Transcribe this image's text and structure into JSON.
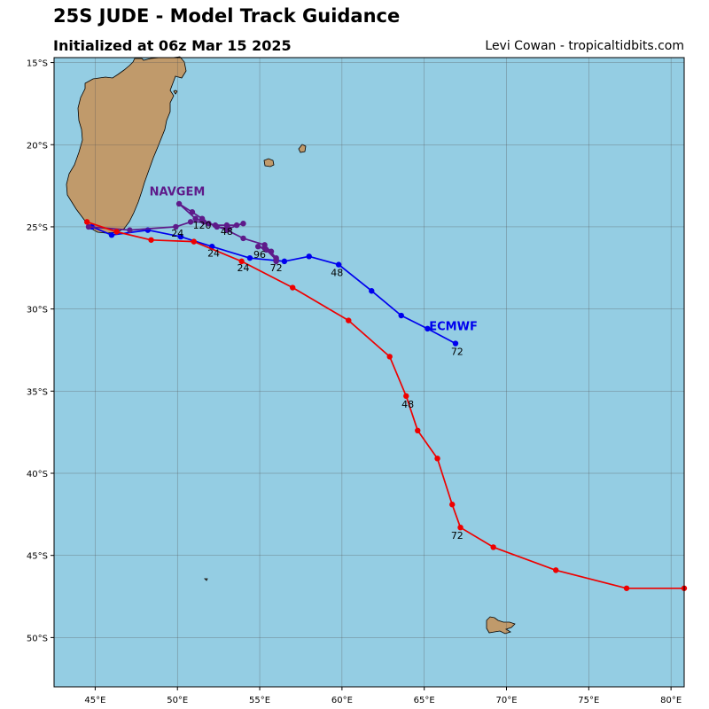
{
  "header": {
    "title": "25S JUDE - Model Track Guidance",
    "subtitle": "Initialized at 06z Mar 15 2025",
    "credit": "Levi Cowan - tropicaltidbits.com"
  },
  "map": {
    "lon_range": [
      42.5,
      80.8
    ],
    "lat_range": [
      -53,
      -14.7
    ],
    "ocean_color": "#94cde3",
    "land_color": "#c09a6b",
    "x_ticks": [
      {
        "value": 45,
        "label": "45°E"
      },
      {
        "value": 50,
        "label": "50°E"
      },
      {
        "value": 55,
        "label": "55°E"
      },
      {
        "value": 60,
        "label": "60°E"
      },
      {
        "value": 65,
        "label": "65°E"
      },
      {
        "value": 70,
        "label": "70°E"
      },
      {
        "value": 75,
        "label": "75°E"
      },
      {
        "value": 80,
        "label": "80°E"
      }
    ],
    "y_ticks": [
      {
        "value": -15,
        "label": "15°S"
      },
      {
        "value": -20,
        "label": "20°S"
      },
      {
        "value": -25,
        "label": "25°S"
      },
      {
        "value": -30,
        "label": "30°S"
      },
      {
        "value": -35,
        "label": "35°S"
      },
      {
        "value": -40,
        "label": "40°S"
      },
      {
        "value": -45,
        "label": "45°S"
      },
      {
        "value": -50,
        "label": "50°S"
      }
    ],
    "grid": true
  },
  "chart_data": {
    "type": "line",
    "x_unit": "degrees longitude E",
    "y_unit": "degrees latitude (negative = S)",
    "series": [
      {
        "name": "ECMWF",
        "color": "#0000ee",
        "points": [
          [
            44.8,
            -25.0
          ],
          [
            46.0,
            -25.5
          ],
          [
            48.2,
            -25.2
          ],
          [
            50.2,
            -25.6
          ],
          [
            52.1,
            -26.2
          ],
          [
            54.4,
            -26.9
          ],
          [
            56.5,
            -27.1
          ],
          [
            58.0,
            -26.8
          ],
          [
            59.8,
            -27.3
          ],
          [
            61.8,
            -28.9
          ],
          [
            63.6,
            -30.4
          ],
          [
            65.2,
            -31.2
          ],
          [
            66.9,
            -32.1
          ]
        ],
        "hour_labels": [
          {
            "text": "24",
            "lon": 52.2,
            "lat": -26.8
          },
          {
            "text": "48",
            "lon": 59.7,
            "lat": -28.0
          },
          {
            "text": "72",
            "lon": 67.0,
            "lat": -32.8
          }
        ]
      },
      {
        "name": "NAVGEM",
        "color": "#5e1a8a",
        "points": [
          [
            44.6,
            -25.0
          ],
          [
            47.1,
            -25.2
          ],
          [
            49.9,
            -25.0
          ],
          [
            50.8,
            -24.7
          ],
          [
            51.6,
            -24.7
          ],
          [
            52.3,
            -24.9
          ],
          [
            53.0,
            -24.9
          ],
          [
            53.6,
            -24.9
          ],
          [
            54.0,
            -24.8
          ],
          [
            53.1,
            -25.1
          ],
          [
            52.4,
            -25.0
          ],
          [
            51.9,
            -24.8
          ],
          [
            51.5,
            -24.5
          ],
          [
            50.9,
            -24.1
          ],
          [
            50.1,
            -23.6
          ],
          [
            51.1,
            -24.5
          ],
          [
            53.0,
            -25.2
          ],
          [
            54.0,
            -25.7
          ],
          [
            55.3,
            -26.1
          ],
          [
            56.0,
            -26.9
          ],
          [
            56.0,
            -27.1
          ],
          [
            55.7,
            -26.5
          ],
          [
            55.3,
            -26.3
          ],
          [
            54.9,
            -26.2
          ],
          [
            55.4,
            -26.4
          ],
          [
            56.0,
            -27.0
          ]
        ],
        "hour_labels": [
          {
            "text": "24",
            "lon": 50.0,
            "lat": -25.6
          },
          {
            "text": "48",
            "lon": 53.0,
            "lat": -25.5
          },
          {
            "text": "96",
            "lon": 55.0,
            "lat": -26.9
          },
          {
            "text": "120",
            "lon": 51.5,
            "lat": -25.1
          }
        ]
      },
      {
        "name": "",
        "color": "#ee0000",
        "points": [
          [
            44.5,
            -24.7
          ],
          [
            46.3,
            -25.3
          ],
          [
            48.4,
            -25.8
          ],
          [
            51.0,
            -25.9
          ],
          [
            53.9,
            -27.1
          ],
          [
            57.0,
            -28.7
          ],
          [
            60.4,
            -30.7
          ],
          [
            62.9,
            -32.9
          ],
          [
            63.9,
            -35.3
          ],
          [
            64.6,
            -37.4
          ],
          [
            65.8,
            -39.1
          ],
          [
            66.7,
            -41.9
          ],
          [
            67.2,
            -43.3
          ],
          [
            69.2,
            -44.5
          ],
          [
            73.0,
            -45.9
          ],
          [
            77.3,
            -47.0
          ],
          [
            80.8,
            -47.0
          ]
        ],
        "hour_labels": [
          {
            "text": "24",
            "lon": 54.0,
            "lat": -27.7
          },
          {
            "text": "72",
            "lon": 56.0,
            "lat": -27.7
          },
          {
            "text": "48",
            "lon": 64.0,
            "lat": -36.0
          },
          {
            "text": "72",
            "lon": 67.0,
            "lat": -44.0
          }
        ]
      }
    ],
    "model_labels": [
      {
        "text": "NAVGEM",
        "lon": 48.3,
        "lat": -23.1,
        "color": "#5e1a8a"
      },
      {
        "text": "ECMWF",
        "lon": 65.3,
        "lat": -31.3,
        "color": "#0000ee"
      }
    ]
  }
}
